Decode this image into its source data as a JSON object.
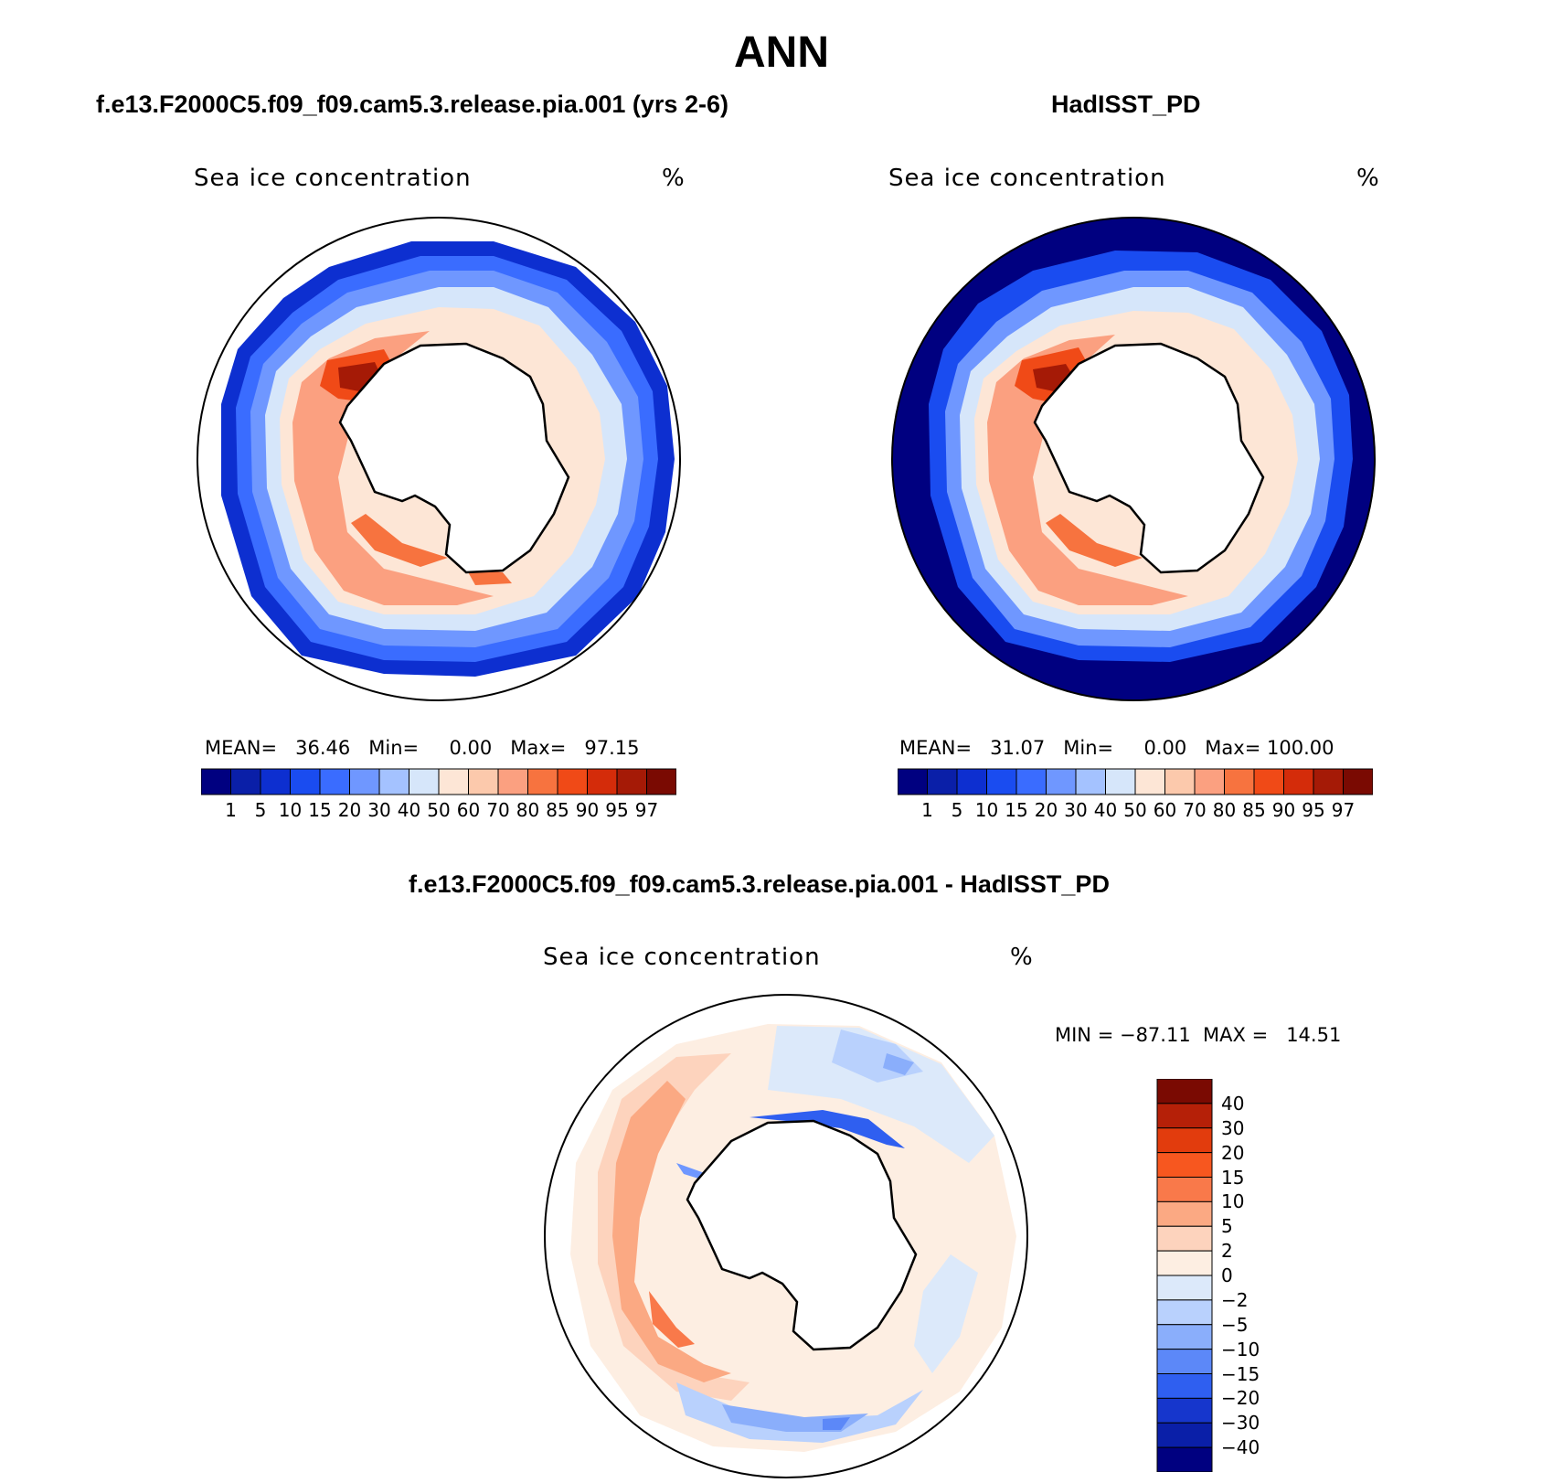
{
  "title": "ANN",
  "panels": [
    {
      "case_title": "f.e13.F2000C5.f09_f09.cam5.3.release.pia.001 (yrs 2-6)",
      "variable": "Sea ice concentration",
      "units": "%",
      "stats": {
        "mean_label": "MEAN=",
        "mean": "36.46",
        "min_label": "Min=",
        "min": "0.00",
        "max_label": "Max=",
        "max": "97.15"
      }
    },
    {
      "case_title": "HadISST_PD",
      "variable": "Sea ice concentration",
      "units": "%",
      "stats": {
        "mean_label": "MEAN=",
        "mean": "31.07",
        "min_label": "Min=",
        "min": "0.00",
        "max_label": "Max=",
        "max": "100.00"
      }
    }
  ],
  "abs_colorbar": {
    "labels": [
      "1",
      "5",
      "10",
      "15",
      "20",
      "30",
      "40",
      "50",
      "60",
      "70",
      "80",
      "85",
      "90",
      "95",
      "97"
    ],
    "colors": [
      "#000080",
      "#0a1fa8",
      "#0d2fd0",
      "#1a4cf0",
      "#3a6cff",
      "#6f97ff",
      "#a4c2ff",
      "#d6e6fa",
      "#fde6d6",
      "#fcc9ac",
      "#fba080",
      "#f7733f",
      "#f04a17",
      "#d42c0a",
      "#a51a06",
      "#7a0a02"
    ]
  },
  "diff_panel": {
    "case_title": "f.e13.F2000C5.f09_f09.cam5.3.release.pia.001 - HadISST_PD",
    "variable": "Sea ice concentration",
    "units": "%",
    "stats": "MIN = −87.11  MAX =   14.51"
  },
  "diff_colorbar": {
    "labels": [
      "40",
      "30",
      "20",
      "15",
      "10",
      "5",
      "2",
      "0",
      "−2",
      "−5",
      "−10",
      "−15",
      "−20",
      "−30",
      "−40"
    ],
    "colors": [
      "#7a0a02",
      "#b52008",
      "#e23c0d",
      "#f7571f",
      "#f9794a",
      "#fba983",
      "#fdd3bd",
      "#fdeee2",
      "#dce9fa",
      "#b9d1fd",
      "#8aaefb",
      "#5c88f8",
      "#2f5ff0",
      "#1636cc",
      "#0a1fa8",
      "#000080"
    ]
  },
  "chart_data": [
    {
      "type": "heatmap",
      "title": "f.e13.F2000C5.f09_f09.cam5.3.release.pia.001 (yrs 2-6)",
      "variable": "Sea ice concentration",
      "units": "%",
      "projection": "south polar stereographic",
      "levels": [
        1,
        5,
        10,
        15,
        20,
        30,
        40,
        50,
        60,
        70,
        80,
        85,
        90,
        95,
        97
      ],
      "mean": 36.46,
      "min": 0.0,
      "max": 97.15
    },
    {
      "type": "heatmap",
      "title": "HadISST_PD",
      "variable": "Sea ice concentration",
      "units": "%",
      "projection": "south polar stereographic",
      "levels": [
        1,
        5,
        10,
        15,
        20,
        30,
        40,
        50,
        60,
        70,
        80,
        85,
        90,
        95,
        97
      ],
      "mean": 31.07,
      "min": 0.0,
      "max": 100.0
    },
    {
      "type": "heatmap",
      "title": "f.e13.F2000C5.f09_f09.cam5.3.release.pia.001 - HadISST_PD",
      "variable": "Sea ice concentration",
      "units": "%",
      "projection": "south polar stereographic",
      "levels": [
        -40,
        -30,
        -20,
        -15,
        -10,
        -5,
        -2,
        0,
        2,
        5,
        10,
        15,
        20,
        30,
        40
      ],
      "min": -87.11,
      "max": 14.51
    }
  ]
}
